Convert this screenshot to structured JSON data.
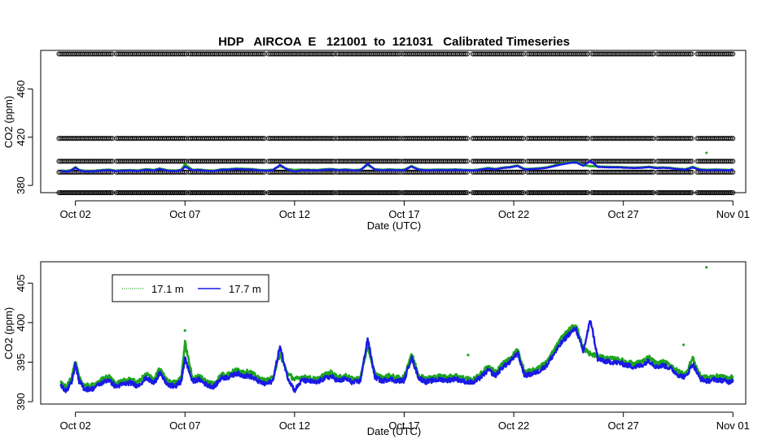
{
  "figure": {
    "title": "HDP   AIRCOA  E   121001  to  121031   Calibrated Timeseries"
  },
  "colors": {
    "series_1": "#1fa51f",
    "series_2": "#1a1ae6",
    "cal_points": "#000000",
    "frame": "#000000"
  },
  "chart_data": [
    {
      "type": "scatter",
      "title": "HDP   AIRCOA  E   121001  to  121031   Calibrated Timeseries",
      "xlabel": "Date (UTC)",
      "ylabel": "CO2 (ppm)",
      "x_tick_labels": [
        "Oct 02",
        "Oct 07",
        "Oct 12",
        "Oct 17",
        "Oct 22",
        "Oct 27",
        "Nov 01"
      ],
      "x_tick_values": [
        "2012-10-02",
        "2012-10-07",
        "2012-10-12",
        "2012-10-17",
        "2012-10-22",
        "2012-10-27",
        "2012-11-01"
      ],
      "y_tick_labels": [
        "380",
        "420",
        "460"
      ],
      "y_tick_values": [
        380,
        420,
        460
      ],
      "xlim": [
        "2012-09-30T10:00",
        "2012-11-01T14:00"
      ],
      "ylim": [
        374,
        492
      ],
      "calibration_levels": [
        374,
        391,
        400,
        419,
        489
      ],
      "calibration_gaps": [
        [
          "2012-10-03T18:00",
          "2012-10-03T20:00"
        ],
        [
          "2012-10-07T02:00",
          "2012-10-07T04:00"
        ],
        [
          "2012-10-10T16:00",
          "2012-10-10T18:00"
        ],
        [
          "2012-10-13T20:00",
          "2012-10-13T22:00"
        ],
        [
          "2012-10-16T20:00",
          "2012-10-16T22:00"
        ],
        [
          "2012-10-19T22:00",
          "2012-10-20T02:00"
        ],
        [
          "2012-10-22T12:00",
          "2012-10-22T14:00"
        ],
        [
          "2012-10-25T10:00",
          "2012-10-25T12:00"
        ],
        [
          "2012-10-28T10:00",
          "2012-10-28T12:00"
        ],
        [
          "2012-10-30T04:00",
          "2012-10-30T08:00"
        ]
      ],
      "series_note_ref": "series shared with panel 2",
      "grid": false
    },
    {
      "type": "line",
      "xlabel": "Date (UTC)",
      "ylabel": "CO2 (ppm)",
      "x_tick_labels": [
        "Oct 02",
        "Oct 07",
        "Oct 12",
        "Oct 17",
        "Oct 22",
        "Oct 27",
        "Nov 01"
      ],
      "x_tick_values": [
        "2012-10-02",
        "2012-10-07",
        "2012-10-12",
        "2012-10-17",
        "2012-10-22",
        "2012-10-27",
        "2012-11-01"
      ],
      "y_tick_labels": [
        "390",
        "395",
        "400",
        "405"
      ],
      "y_tick_values": [
        390,
        395,
        400,
        405
      ],
      "xlim": [
        "2012-09-30T10:00",
        "2012-11-01T14:00"
      ],
      "ylim": [
        389.7,
        407.7
      ],
      "legend": {
        "position": "top-left",
        "entries": [
          "17.1 m",
          "17.7 m"
        ]
      },
      "grid": false,
      "series": [
        {
          "name": "17.1 m",
          "x": [
            "2012-10-01T08:00",
            "2012-10-01T14:00",
            "2012-10-01T20:00",
            "2012-10-02T00:00",
            "2012-10-02T04:00",
            "2012-10-02T10:00",
            "2012-10-02T18:00",
            "2012-10-03T04:00",
            "2012-10-03T12:00",
            "2012-10-03T20:00",
            "2012-10-04T04:00",
            "2012-10-04T12:00",
            "2012-10-04T20:00",
            "2012-10-05T06:00",
            "2012-10-05T14:00",
            "2012-10-05T20:00",
            "2012-10-06T06:00",
            "2012-10-06T14:00",
            "2012-10-06T20:00",
            "2012-10-07T00:00",
            "2012-10-07T08:00",
            "2012-10-07T16:00",
            "2012-10-08T00:00",
            "2012-10-08T08:00",
            "2012-10-08T16:00",
            "2012-10-09T00:00",
            "2012-10-09T08:00",
            "2012-10-09T16:00",
            "2012-10-10T00:00",
            "2012-10-10T08:00",
            "2012-10-10T16:00",
            "2012-10-11T00:00",
            "2012-10-11T08:00",
            "2012-10-11T16:00",
            "2012-10-12T00:00",
            "2012-10-12T08:00",
            "2012-10-12T16:00",
            "2012-10-13T00:00",
            "2012-10-13T08:00",
            "2012-10-13T16:00",
            "2012-10-14T00:00",
            "2012-10-14T08:00",
            "2012-10-14T16:00",
            "2012-10-15T00:00",
            "2012-10-15T08:00",
            "2012-10-15T16:00",
            "2012-10-16T00:00",
            "2012-10-16T08:00",
            "2012-10-16T16:00",
            "2012-10-17T00:00",
            "2012-10-17T08:00",
            "2012-10-17T16:00",
            "2012-10-18T00:00",
            "2012-10-18T08:00",
            "2012-10-18T16:00",
            "2012-10-19T00:00",
            "2012-10-19T08:00",
            "2012-10-19T16:00",
            "2012-10-20T04:00",
            "2012-10-20T12:00",
            "2012-10-20T20:00",
            "2012-10-21T04:00",
            "2012-10-21T12:00",
            "2012-10-21T20:00",
            "2012-10-22T04:00",
            "2012-10-22T12:00",
            "2012-10-22T20:00",
            "2012-10-23T04:00",
            "2012-10-23T12:00",
            "2012-10-23T20:00",
            "2012-10-24T04:00",
            "2012-10-24T12:00",
            "2012-10-24T20:00",
            "2012-10-25T04:00",
            "2012-10-25T12:00",
            "2012-10-25T20:00",
            "2012-10-26T04:00",
            "2012-10-26T12:00",
            "2012-10-26T20:00",
            "2012-10-27T04:00",
            "2012-10-27T12:00",
            "2012-10-27T20:00",
            "2012-10-28T04:00",
            "2012-10-28T12:00",
            "2012-10-28T20:00",
            "2012-10-29T04:00",
            "2012-10-29T12:00",
            "2012-10-29T20:00",
            "2012-10-30T04:00",
            "2012-10-30T12:00",
            "2012-10-30T20:00",
            "2012-10-31T04:00",
            "2012-10-31T12:00",
            "2012-10-31T20:00",
            "2012-11-01T00:00"
          ],
          "y": [
            392.4,
            391.8,
            393.0,
            395.2,
            393.0,
            392.0,
            392.0,
            392.7,
            393.2,
            392.3,
            392.6,
            392.8,
            392.4,
            393.5,
            392.8,
            394.1,
            392.5,
            392.4,
            393.0,
            397.5,
            393.0,
            393.2,
            392.5,
            392.3,
            393.4,
            393.5,
            394.0,
            393.8,
            393.7,
            393.0,
            392.6,
            393.0,
            396.0,
            393.6,
            392.8,
            393.1,
            393.0,
            392.8,
            393.3,
            393.7,
            393.0,
            393.3,
            392.8,
            393.0,
            397.0,
            393.5,
            393.0,
            393.3,
            393.0,
            393.1,
            396.1,
            393.4,
            392.9,
            393.1,
            393.2,
            393.1,
            393.3,
            393.0,
            392.8,
            393.5,
            394.5,
            393.7,
            394.8,
            395.4,
            396.6,
            393.7,
            393.9,
            394.3,
            395.0,
            396.5,
            398.0,
            399.0,
            399.8,
            396.8,
            396.0,
            395.8,
            395.5,
            395.4,
            395.3,
            395.0,
            394.8,
            395.0,
            395.6,
            394.8,
            395.0,
            394.6,
            393.8,
            393.5,
            395.5,
            393.3,
            393.0,
            393.2,
            393.1,
            392.9,
            393.2
          ]
        },
        {
          "name": "17.7 m",
          "x": [
            "2012-10-01T08:00",
            "2012-10-01T14:00",
            "2012-10-01T20:00",
            "2012-10-02T00:00",
            "2012-10-02T04:00",
            "2012-10-02T10:00",
            "2012-10-02T18:00",
            "2012-10-03T04:00",
            "2012-10-03T12:00",
            "2012-10-03T20:00",
            "2012-10-04T04:00",
            "2012-10-04T12:00",
            "2012-10-04T20:00",
            "2012-10-05T06:00",
            "2012-10-05T14:00",
            "2012-10-05T20:00",
            "2012-10-06T06:00",
            "2012-10-06T14:00",
            "2012-10-06T20:00",
            "2012-10-07T00:00",
            "2012-10-07T08:00",
            "2012-10-07T16:00",
            "2012-10-08T00:00",
            "2012-10-08T08:00",
            "2012-10-08T16:00",
            "2012-10-09T00:00",
            "2012-10-09T08:00",
            "2012-10-09T16:00",
            "2012-10-10T00:00",
            "2012-10-10T08:00",
            "2012-10-10T16:00",
            "2012-10-11T00:00",
            "2012-10-11T08:00",
            "2012-10-11T16:00",
            "2012-10-12T00:00",
            "2012-10-12T08:00",
            "2012-10-12T16:00",
            "2012-10-13T00:00",
            "2012-10-13T08:00",
            "2012-10-13T16:00",
            "2012-10-14T00:00",
            "2012-10-14T08:00",
            "2012-10-14T16:00",
            "2012-10-15T00:00",
            "2012-10-15T08:00",
            "2012-10-15T16:00",
            "2012-10-16T00:00",
            "2012-10-16T08:00",
            "2012-10-16T16:00",
            "2012-10-17T00:00",
            "2012-10-17T08:00",
            "2012-10-17T16:00",
            "2012-10-18T00:00",
            "2012-10-18T08:00",
            "2012-10-18T16:00",
            "2012-10-19T00:00",
            "2012-10-19T08:00",
            "2012-10-19T16:00",
            "2012-10-20T04:00",
            "2012-10-20T12:00",
            "2012-10-20T20:00",
            "2012-10-21T04:00",
            "2012-10-21T12:00",
            "2012-10-21T20:00",
            "2012-10-22T04:00",
            "2012-10-22T12:00",
            "2012-10-22T20:00",
            "2012-10-23T04:00",
            "2012-10-23T12:00",
            "2012-10-23T20:00",
            "2012-10-24T04:00",
            "2012-10-24T12:00",
            "2012-10-24T20:00",
            "2012-10-25T04:00",
            "2012-10-25T12:00",
            "2012-10-25T20:00",
            "2012-10-26T04:00",
            "2012-10-26T12:00",
            "2012-10-26T20:00",
            "2012-10-27T04:00",
            "2012-10-27T12:00",
            "2012-10-27T20:00",
            "2012-10-28T04:00",
            "2012-10-28T12:00",
            "2012-10-28T20:00",
            "2012-10-29T04:00",
            "2012-10-29T12:00",
            "2012-10-29T20:00",
            "2012-10-30T04:00",
            "2012-10-30T12:00",
            "2012-10-30T20:00",
            "2012-10-31T04:00",
            "2012-10-31T12:00",
            "2012-10-31T20:00",
            "2012-11-01T00:00"
          ],
          "y": [
            392.0,
            391.4,
            392.5,
            394.8,
            392.6,
            391.6,
            391.6,
            392.3,
            392.8,
            391.9,
            392.2,
            392.4,
            392.0,
            393.0,
            392.3,
            393.6,
            392.0,
            392.0,
            392.6,
            395.5,
            392.6,
            392.8,
            392.1,
            391.9,
            393.0,
            393.1,
            393.6,
            393.3,
            393.2,
            392.6,
            392.2,
            392.6,
            397.0,
            393.2,
            391.4,
            392.7,
            392.6,
            392.4,
            392.9,
            393.2,
            392.6,
            392.9,
            392.4,
            392.6,
            398.0,
            393.1,
            392.6,
            392.9,
            392.6,
            392.7,
            395.6,
            393.0,
            392.5,
            392.7,
            392.8,
            392.7,
            392.9,
            392.6,
            392.4,
            393.1,
            394.0,
            393.3,
            394.4,
            395.0,
            396.2,
            393.3,
            393.5,
            393.9,
            394.6,
            396.0,
            397.4,
            398.5,
            399.3,
            396.3,
            400.4,
            395.4,
            395.1,
            395.0,
            394.9,
            394.6,
            394.4,
            394.6,
            395.2,
            394.4,
            394.6,
            394.2,
            393.4,
            393.1,
            394.8,
            392.9,
            392.6,
            392.8,
            392.7,
            392.5,
            392.8
          ]
        }
      ],
      "isolated_points": [
        {
          "series": "17.1 m",
          "x": "2012-10-30T19:00",
          "y": 407.0
        },
        {
          "series": "17.1 m",
          "x": "2012-10-29T18:00",
          "y": 397.2
        },
        {
          "series": "17.1 m",
          "x": "2012-10-07T00:00",
          "y": 399.0
        },
        {
          "series": "17.1 m",
          "x": "2012-10-19T22:00",
          "y": 395.9
        }
      ]
    }
  ]
}
